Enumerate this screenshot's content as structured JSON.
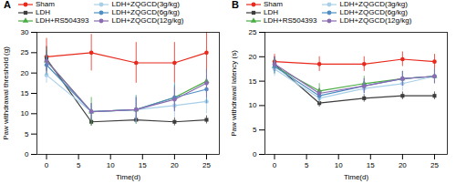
{
  "chart_data": [
    {
      "type": "line",
      "title": "A",
      "x_label": "Time(d)",
      "y_label": "Paw withdrawal threshold (g)",
      "x": [
        0,
        7,
        14,
        20,
        25
      ],
      "xlim": [
        -1.5,
        27
      ],
      "xticks": [
        0,
        5,
        10,
        15,
        20,
        25
      ],
      "ylim": [
        0,
        30
      ],
      "yticks": [
        0,
        5,
        10,
        15,
        20,
        25,
        30
      ],
      "grid": false,
      "legend": "upper left",
      "series": [
        {
          "name": "Sham",
          "color": "#e8291c",
          "marker": "circle",
          "line_style": "solid",
          "values": [
            24.0,
            25.0,
            22.5,
            22.5,
            25.0
          ],
          "errors": [
            4.5,
            4.5,
            5.0,
            5.0,
            5.0
          ]
        },
        {
          "name": "LDH",
          "color": "#3d3d3d",
          "marker": "square",
          "line_style": "solid",
          "values": [
            23.5,
            8.0,
            8.5,
            8.0,
            8.5
          ],
          "errors": [
            3.0,
            1.0,
            1.0,
            1.0,
            1.0
          ]
        },
        {
          "name": "LDH+RS504393",
          "color": "#4aac43",
          "marker": "triangle",
          "line_style": "solid",
          "values": [
            23.0,
            10.5,
            11.0,
            14.0,
            18.0
          ],
          "errors": [
            2.5,
            3.5,
            3.5,
            3.0,
            3.0
          ]
        },
        {
          "name": "LDH+ZQGCD(3g/kg)",
          "color": "#a8cfe8",
          "marker": "circle",
          "line_style": "solid",
          "values": [
            19.5,
            10.5,
            11.0,
            12.0,
            13.0
          ],
          "errors": [
            2.0,
            2.0,
            3.5,
            3.0,
            3.0
          ]
        },
        {
          "name": "LDH+ZQGCD(6g/kg)",
          "color": "#4d8fc4",
          "marker": "circle",
          "line_style": "solid",
          "values": [
            22.0,
            10.5,
            11.0,
            14.0,
            16.0
          ],
          "errors": [
            2.5,
            2.0,
            3.0,
            3.5,
            3.5
          ]
        },
        {
          "name": "LDH+ZQGCD(12g/kg)",
          "color": "#8b6bb1",
          "marker": "circle",
          "line_style": "solid",
          "values": [
            23.0,
            10.5,
            11.0,
            13.5,
            17.5
          ],
          "errors": [
            2.5,
            2.0,
            3.0,
            3.0,
            3.5
          ]
        }
      ]
    },
    {
      "type": "line",
      "title": "B",
      "x_label": "Time(d)",
      "y_label": "Paw withdrawal latency (s)",
      "x": [
        0,
        7,
        14,
        20,
        25
      ],
      "xlim": [
        -1.5,
        27
      ],
      "xticks": [
        0,
        5,
        10,
        15,
        20,
        25
      ],
      "ylim": [
        0,
        25
      ],
      "yticks": [
        0,
        5,
        10,
        15,
        20,
        25
      ],
      "grid": false,
      "legend": "upper left",
      "series": [
        {
          "name": "Sham",
          "color": "#e8291c",
          "marker": "circle",
          "line_style": "solid",
          "values": [
            19.0,
            18.5,
            18.5,
            19.5,
            19.0
          ],
          "errors": [
            1.5,
            1.5,
            1.5,
            1.5,
            1.5
          ]
        },
        {
          "name": "LDH",
          "color": "#3d3d3d",
          "marker": "square",
          "line_style": "solid",
          "values": [
            18.5,
            10.5,
            11.5,
            12.0,
            12.0
          ],
          "errors": [
            1.5,
            0.8,
            0.8,
            0.8,
            0.8
          ]
        },
        {
          "name": "LDH+RS504393",
          "color": "#4aac43",
          "marker": "triangle",
          "line_style": "solid",
          "values": [
            18.0,
            13.0,
            14.5,
            15.5,
            16.0
          ],
          "errors": [
            1.5,
            1.5,
            1.5,
            1.5,
            1.5
          ]
        },
        {
          "name": "LDH+ZQGCD(3g/kg)",
          "color": "#a8cfe8",
          "marker": "circle",
          "line_style": "solid",
          "values": [
            17.5,
            11.5,
            13.5,
            14.5,
            16.0
          ],
          "errors": [
            1.5,
            1.0,
            1.5,
            1.5,
            1.5
          ]
        },
        {
          "name": "LDH+ZQGCD(6g/kg)",
          "color": "#4d8fc4",
          "marker": "circle",
          "line_style": "solid",
          "values": [
            18.0,
            12.0,
            14.0,
            15.5,
            16.0
          ],
          "errors": [
            1.5,
            1.0,
            1.5,
            1.5,
            1.5
          ]
        },
        {
          "name": "LDH+ZQGCD(12g/kg)",
          "color": "#8b6bb1",
          "marker": "circle",
          "line_style": "solid",
          "values": [
            18.5,
            12.5,
            14.0,
            15.5,
            16.0
          ],
          "errors": [
            1.5,
            1.0,
            1.5,
            1.5,
            1.5
          ]
        }
      ]
    }
  ]
}
